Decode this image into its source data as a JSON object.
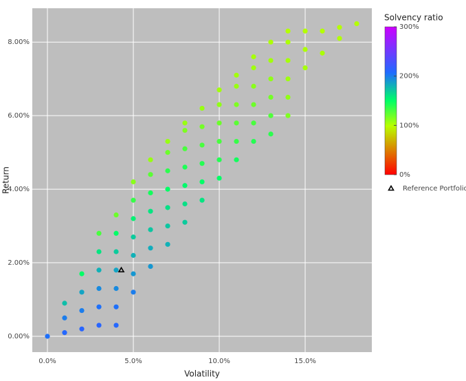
{
  "chart_data": {
    "type": "scatter",
    "xlabel": "Volatility",
    "ylabel": "Return",
    "background": "#bebebe",
    "grid": true,
    "xlim": [
      -0.88,
      18.88
    ],
    "ylim": [
      -0.43,
      8.92
    ],
    "xticks": [
      {
        "value": 0,
        "label": "0.0%"
      },
      {
        "value": 5,
        "label": "5.0%"
      },
      {
        "value": 10,
        "label": "10.0%"
      },
      {
        "value": 15,
        "label": "15.0%"
      }
    ],
    "yticks": [
      {
        "value": 0,
        "label": "0.00%"
      },
      {
        "value": 2,
        "label": "2.00%"
      },
      {
        "value": 4,
        "label": "4.00%"
      },
      {
        "value": 6,
        "label": "6.00%"
      },
      {
        "value": 8,
        "label": "8.00%"
      }
    ],
    "points": {
      "x": [
        0,
        1,
        1,
        1,
        2,
        2,
        2,
        2,
        3,
        3,
        3,
        3,
        3,
        3,
        4,
        4,
        4,
        4,
        4,
        4,
        4,
        5,
        5,
        5,
        5,
        5,
        5,
        5,
        6,
        6,
        6,
        6,
        6,
        6,
        6,
        7,
        7,
        7,
        7,
        7,
        7,
        7,
        8,
        8,
        8,
        8,
        8,
        8,
        8,
        9,
        9,
        9,
        9,
        9,
        9,
        10,
        10,
        10,
        10,
        10,
        10,
        11,
        11,
        11,
        11,
        11,
        11,
        12,
        12,
        12,
        12,
        12,
        12,
        13,
        13,
        13,
        13,
        13,
        13,
        14,
        14,
        14,
        14,
        14,
        14,
        15,
        15,
        15,
        16,
        16,
        17,
        17,
        18
      ],
      "y": [
        0,
        0.1,
        0.5,
        0.9,
        0.2,
        0.7,
        1.2,
        1.7,
        0.3,
        0.8,
        1.3,
        1.8,
        2.3,
        2.8,
        0.3,
        0.8,
        1.3,
        1.8,
        2.3,
        2.8,
        3.3,
        1.2,
        1.7,
        2.2,
        2.7,
        3.2,
        3.7,
        4.2,
        1.9,
        2.4,
        2.9,
        3.4,
        3.9,
        4.4,
        4.8,
        2.5,
        3.0,
        3.5,
        4.0,
        4.5,
        5.0,
        5.3,
        3.1,
        3.6,
        4.1,
        4.6,
        5.1,
        5.6,
        5.8,
        3.7,
        4.2,
        4.7,
        5.2,
        5.7,
        6.2,
        4.3,
        4.8,
        5.3,
        5.8,
        6.3,
        6.7,
        4.8,
        5.3,
        5.8,
        6.3,
        6.8,
        7.1,
        5.3,
        5.8,
        6.3,
        6.8,
        7.3,
        7.6,
        5.5,
        6.0,
        6.5,
        7.0,
        7.5,
        8.0,
        6.0,
        6.5,
        7.0,
        7.5,
        8.0,
        8.3,
        7.3,
        7.8,
        8.3,
        7.7,
        8.3,
        8.1,
        8.4,
        8.5
      ],
      "color_values": [
        205,
        210,
        200,
        175,
        212,
        200,
        185,
        150,
        212,
        205,
        195,
        180,
        160,
        130,
        210,
        205,
        195,
        185,
        170,
        150,
        120,
        200,
        190,
        180,
        170,
        155,
        135,
        112,
        190,
        182,
        172,
        160,
        145,
        125,
        108,
        180,
        172,
        162,
        150,
        138,
        120,
        108,
        170,
        162,
        152,
        142,
        130,
        115,
        108,
        160,
        150,
        140,
        130,
        118,
        108,
        150,
        140,
        130,
        120,
        110,
        105,
        145,
        135,
        125,
        115,
        108,
        105,
        140,
        130,
        120,
        112,
        106,
        104,
        138,
        128,
        118,
        110,
        105,
        102,
        115,
        110,
        106,
        104,
        102,
        100,
        104,
        102,
        100,
        103,
        100,
        101,
        100,
        100
      ]
    },
    "colorbar": {
      "title": "Solvency ratio",
      "lim": [
        0,
        300
      ],
      "ticks": [
        {
          "value": 0,
          "label": "0%"
        },
        {
          "value": 100,
          "label": "100%"
        },
        {
          "value": 200,
          "label": "200%"
        },
        {
          "value": 300,
          "label": "300%"
        }
      ],
      "colorscale": [
        [
          0,
          "#ff0000"
        ],
        [
          0.33,
          "#b8ff00"
        ],
        [
          0.5,
          "#00ff66"
        ],
        [
          0.69,
          "#1f6bff"
        ],
        [
          1,
          "#cc00ff"
        ]
      ]
    },
    "series": [
      {
        "name": "Reference Portfolio",
        "x": [
          4.3
        ],
        "y": [
          1.8
        ],
        "color": "#000000"
      }
    ]
  }
}
